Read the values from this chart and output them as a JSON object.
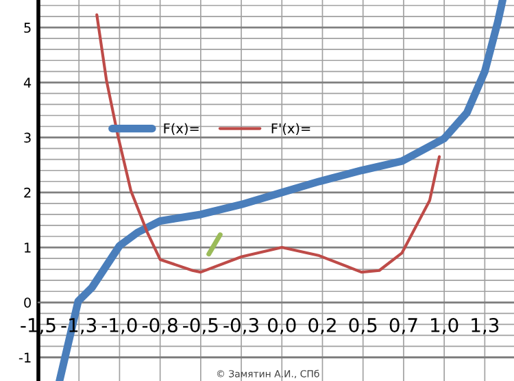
{
  "chart_data": {
    "type": "line",
    "series": [
      {
        "name": "F(x)=",
        "color": "#4a7ebb",
        "x": [
          -1.37,
          -1.255,
          -1.17,
          -1.0,
          -0.89,
          -0.75,
          -0.5,
          -0.25,
          0.0,
          0.23,
          0.49,
          0.74,
          1.0,
          1.14,
          1.25,
          1.33,
          1.36
        ],
        "values": [
          -1.43,
          0.02,
          0.27,
          1.03,
          1.27,
          1.48,
          1.6,
          1.78,
          2.0,
          2.2,
          2.4,
          2.57,
          2.98,
          3.45,
          4.2,
          5.1,
          5.5
        ]
      },
      {
        "name": "F'(x)=",
        "color": "#be4b48",
        "x": [
          -1.14,
          -1.08,
          -1.01,
          -0.93,
          -0.83,
          -0.75,
          -0.55,
          -0.5,
          -0.25,
          0.0,
          0.23,
          0.49,
          0.6,
          0.74,
          0.91,
          0.97
        ],
        "values": [
          5.23,
          4.03,
          3.03,
          2.03,
          1.28,
          0.78,
          0.58,
          0.55,
          0.83,
          1.0,
          0.85,
          0.55,
          0.58,
          0.9,
          1.85,
          2.65
        ]
      },
      {
        "color": "#9bbb59",
        "x": [
          -0.45,
          -0.38
        ],
        "values": [
          0.88,
          1.23
        ]
      }
    ],
    "xlim": [
      -1.5,
      1.43
    ],
    "ylim": [
      -1.43,
      5.5
    ],
    "xticks": [
      {
        "value": -1.5,
        "label": "-1,5"
      },
      {
        "value": -1.25,
        "label": "-1,3"
      },
      {
        "value": -1.0,
        "label": "-1,0"
      },
      {
        "value": -0.75,
        "label": "-0,8"
      },
      {
        "value": -0.5,
        "label": "-0,5"
      },
      {
        "value": -0.25,
        "label": "-0,3"
      },
      {
        "value": 0.0,
        "label": "0,0"
      },
      {
        "value": 0.25,
        "label": "0,2"
      },
      {
        "value": 0.5,
        "label": "0,5"
      },
      {
        "value": 0.75,
        "label": "0,7"
      },
      {
        "value": 1.0,
        "label": "1,0"
      },
      {
        "value": 1.25,
        "label": "1,3"
      }
    ],
    "yticks": [
      -1,
      {
        "value": -0.8,
        "label": null
      },
      {
        "value": -0.6,
        "label": null
      },
      {
        "value": -0.4,
        "label": null
      },
      {
        "value": -0.2,
        "label": null
      },
      0,
      {
        "value": 0.2,
        "label": null
      },
      {
        "value": 0.4,
        "label": null
      },
      {
        "value": 0.6,
        "label": null
      },
      {
        "value": 0.8,
        "label": null
      },
      1,
      {
        "value": 1.2,
        "label": null
      },
      {
        "value": 1.4,
        "label": null
      },
      {
        "value": 1.6,
        "label": null
      },
      {
        "value": 1.8,
        "label": null
      },
      2,
      {
        "value": 2.2,
        "label": null
      },
      {
        "value": 2.4,
        "label": null
      },
      {
        "value": 2.6,
        "label": null
      },
      {
        "value": 2.8,
        "label": null
      },
      3,
      {
        "value": 3.2,
        "label": null
      },
      {
        "value": 3.4,
        "label": null
      },
      {
        "value": 3.6,
        "label": null
      },
      {
        "value": 3.8,
        "label": null
      },
      4,
      {
        "value": 4.2,
        "label": null
      },
      {
        "value": 4.4,
        "label": null
      },
      {
        "value": 4.6,
        "label": null
      },
      {
        "value": 4.8,
        "label": null
      },
      5,
      {
        "value": 5.2,
        "label": null
      },
      {
        "value": 5.4,
        "label": null
      }
    ],
    "grid": true,
    "legend": "center left",
    "line_style": "solid",
    "annotations": [
      "© Замятин А.И., СПб"
    ]
  }
}
